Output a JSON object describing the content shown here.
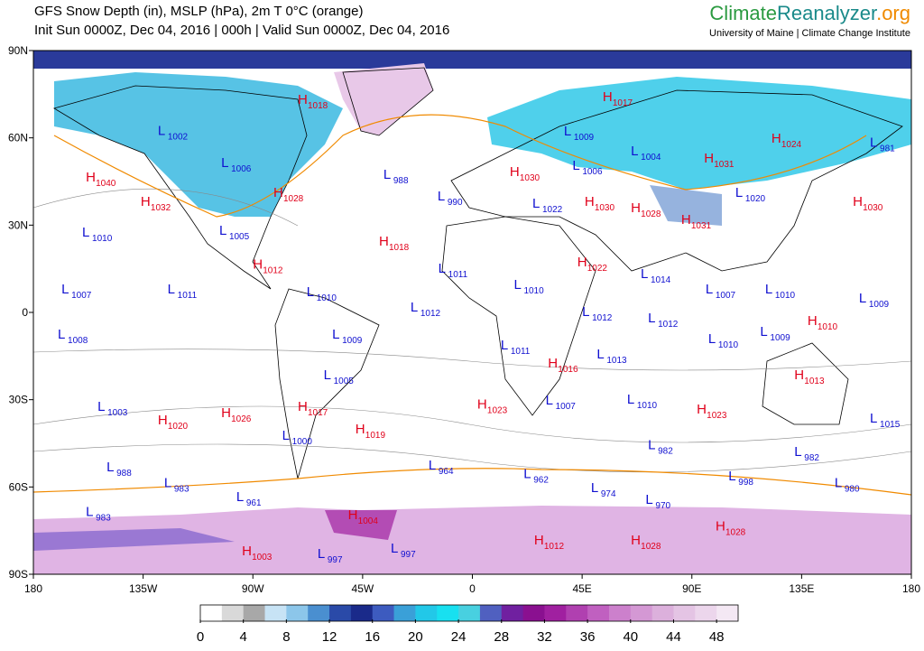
{
  "header": {
    "title": "GFS Snow Depth (in), MSLP (hPa), 2m T 0°C (orange)",
    "subtitle": "Init Sun 0000Z, Dec 04, 2016 | 000h | Valid Sun 0000Z, Dec 04, 2016",
    "logo_climate": "Climate",
    "logo_reanalyzer": "Reanalyzer",
    "logo_org": ".org",
    "logo_sub": "University of Maine | Climate Change Institute"
  },
  "map": {
    "xlim": [
      -180,
      180
    ],
    "ylim": [
      -90,
      90
    ],
    "xticks": [
      {
        "value": -180,
        "label": "180"
      },
      {
        "value": -135,
        "label": "135W"
      },
      {
        "value": -90,
        "label": "90W"
      },
      {
        "value": -45,
        "label": "45W"
      },
      0,
      {
        "value": 45,
        "label": "45E"
      },
      {
        "value": 90,
        "label": "90E"
      },
      {
        "value": 135,
        "label": "135E"
      },
      {
        "value": 180,
        "label": "180"
      }
    ],
    "yticks": [
      {
        "value": 90,
        "label": "90N"
      },
      {
        "value": 60,
        "label": "60N"
      },
      {
        "value": 30,
        "label": "30N"
      },
      0,
      {
        "value": -30,
        "label": "30S"
      },
      {
        "value": -60,
        "label": "60S"
      },
      {
        "value": -90,
        "label": "90S"
      }
    ],
    "center_colors": {
      "H": "#e0001a",
      "L": "#1010d0"
    },
    "pressure_centers": [
      {
        "type": "H",
        "value": 1018,
        "lon": -71.6,
        "lat": 71.7
      },
      {
        "type": "L",
        "value": 1002,
        "lon": -129,
        "lat": 61
      },
      {
        "type": "L",
        "value": 1006,
        "lon": -103,
        "lat": 50
      },
      {
        "type": "H",
        "value": 1040,
        "lon": -158.5,
        "lat": 45
      },
      {
        "type": "H",
        "value": 1032,
        "lon": -136,
        "lat": 36.6
      },
      {
        "type": "H",
        "value": 1028,
        "lon": -81.6,
        "lat": 39.7
      },
      {
        "type": "L",
        "value": 1005,
        "lon": -103.8,
        "lat": 26.7
      },
      {
        "type": "L",
        "value": 1010,
        "lon": -160,
        "lat": 26
      },
      {
        "type": "H",
        "value": 1012,
        "lon": -90,
        "lat": 15
      },
      {
        "type": "L",
        "value": 988,
        "lon": -36.5,
        "lat": 46
      },
      {
        "type": "L",
        "value": 990,
        "lon": -14.3,
        "lat": 38.5
      },
      {
        "type": "H",
        "value": 1018,
        "lon": -38.3,
        "lat": 23
      },
      {
        "type": "L",
        "value": 1011,
        "lon": -14,
        "lat": 13.6
      },
      {
        "type": "L",
        "value": 1007,
        "lon": -168.5,
        "lat": 6.5
      },
      {
        "type": "L",
        "value": 1011,
        "lon": -125,
        "lat": 6.5
      },
      {
        "type": "L",
        "value": 1010,
        "lon": -68,
        "lat": 5.6
      },
      {
        "type": "L",
        "value": 1012,
        "lon": -25.4,
        "lat": 0.3
      },
      {
        "type": "L",
        "value": 1008,
        "lon": -170,
        "lat": -9
      },
      {
        "type": "L",
        "value": 1009,
        "lon": -57.5,
        "lat": -9
      },
      {
        "type": "L",
        "value": 1005,
        "lon": -61,
        "lat": -23
      },
      {
        "type": "L",
        "value": 1003,
        "lon": -153.7,
        "lat": -33.8
      },
      {
        "type": "H",
        "value": 1020,
        "lon": -129,
        "lat": -38.5
      },
      {
        "type": "H",
        "value": 1026,
        "lon": -103,
        "lat": -36
      },
      {
        "type": "H",
        "value": 1017,
        "lon": -71.6,
        "lat": -33.8
      },
      {
        "type": "H",
        "value": 1019,
        "lon": -48,
        "lat": -41.6
      },
      {
        "type": "L",
        "value": 1000,
        "lon": -78,
        "lat": -43.8
      },
      {
        "type": "H",
        "value": 1023,
        "lon": 2,
        "lat": -33
      },
      {
        "type": "L",
        "value": 988,
        "lon": -150,
        "lat": -54.6
      },
      {
        "type": "L",
        "value": 983,
        "lon": -126.4,
        "lat": -60
      },
      {
        "type": "L",
        "value": 961,
        "lon": -96.8,
        "lat": -64.9
      },
      {
        "type": "L",
        "value": 983,
        "lon": -158.5,
        "lat": -70
      },
      {
        "type": "H",
        "value": 1004,
        "lon": -51,
        "lat": -71
      },
      {
        "type": "H",
        "value": 1003,
        "lon": -94.5,
        "lat": -83.5
      },
      {
        "type": "L",
        "value": 997,
        "lon": -63.5,
        "lat": -84.4
      },
      {
        "type": "L",
        "value": 997,
        "lon": -33.5,
        "lat": -82.6
      },
      {
        "type": "L",
        "value": 964,
        "lon": -18,
        "lat": -54
      },
      {
        "type": "L",
        "value": 962,
        "lon": 21,
        "lat": -57
      },
      {
        "type": "L",
        "value": 974,
        "lon": 48.6,
        "lat": -61.8
      },
      {
        "type": "L",
        "value": 970,
        "lon": 71,
        "lat": -65.8
      },
      {
        "type": "H",
        "value": 1012,
        "lon": 25.3,
        "lat": -79.8
      },
      {
        "type": "H",
        "value": 1028,
        "lon": 65,
        "lat": -79.8
      },
      {
        "type": "H",
        "value": 1028,
        "lon": 99.7,
        "lat": -75
      },
      {
        "type": "L",
        "value": 998,
        "lon": 105,
        "lat": -57.7
      },
      {
        "type": "L",
        "value": 980,
        "lon": 148.5,
        "lat": -60
      },
      {
        "type": "L",
        "value": 982,
        "lon": 132,
        "lat": -49.4
      },
      {
        "type": "L",
        "value": 982,
        "lon": 72,
        "lat": -47
      },
      {
        "type": "H",
        "value": 1023,
        "lon": 92,
        "lat": -34.8
      },
      {
        "type": "L",
        "value": 1010,
        "lon": 63.4,
        "lat": -31.4
      },
      {
        "type": "L",
        "value": 1007,
        "lon": 30,
        "lat": -31.7
      },
      {
        "type": "H",
        "value": 1016,
        "lon": 31,
        "lat": -19
      },
      {
        "type": "L",
        "value": 1013,
        "lon": 51,
        "lat": -15.8
      },
      {
        "type": "L",
        "value": 1011,
        "lon": 11.6,
        "lat": -12.7
      },
      {
        "type": "L",
        "value": 1012,
        "lon": 45,
        "lat": -1.3
      },
      {
        "type": "L",
        "value": 1010,
        "lon": 17,
        "lat": 8
      },
      {
        "type": "H",
        "value": 1022,
        "lon": 43,
        "lat": 15.8
      },
      {
        "type": "L",
        "value": 1014,
        "lon": 69,
        "lat": 11.8
      },
      {
        "type": "L",
        "value": 1012,
        "lon": 72,
        "lat": -3.4
      },
      {
        "type": "L",
        "value": 1007,
        "lon": 95.6,
        "lat": 6.5
      },
      {
        "type": "L",
        "value": 1010,
        "lon": 120,
        "lat": 6.5
      },
      {
        "type": "L",
        "value": 1009,
        "lon": 158.5,
        "lat": 3.4
      },
      {
        "type": "L",
        "value": 1010,
        "lon": 96.7,
        "lat": -10.6
      },
      {
        "type": "L",
        "value": 1009,
        "lon": 118,
        "lat": -8
      },
      {
        "type": "H",
        "value": 1010,
        "lon": 137.4,
        "lat": -4.4
      },
      {
        "type": "H",
        "value": 1013,
        "lon": 132,
        "lat": -23
      },
      {
        "type": "L",
        "value": 1015,
        "lon": 163,
        "lat": -37.9
      },
      {
        "type": "H",
        "value": 1030,
        "lon": 156,
        "lat": 36.6
      },
      {
        "type": "L",
        "value": 981,
        "lon": 163,
        "lat": 57
      },
      {
        "type": "H",
        "value": 1024,
        "lon": 122.6,
        "lat": 58.3
      },
      {
        "type": "H",
        "value": 1031,
        "lon": 95,
        "lat": 51.5
      },
      {
        "type": "L",
        "value": 1020,
        "lon": 107.8,
        "lat": 39.7
      },
      {
        "type": "H",
        "value": 1031,
        "lon": 85.6,
        "lat": 30.4
      },
      {
        "type": "H",
        "value": 1028,
        "lon": 65,
        "lat": 34.4
      },
      {
        "type": "H",
        "value": 1030,
        "lon": 46,
        "lat": 36.6
      },
      {
        "type": "L",
        "value": 1022,
        "lon": 24.6,
        "lat": 36
      },
      {
        "type": "L",
        "value": 1006,
        "lon": 41,
        "lat": 49
      },
      {
        "type": "H",
        "value": 1030,
        "lon": 15.3,
        "lat": 46.9
      },
      {
        "type": "L",
        "value": 1009,
        "lon": 37.5,
        "lat": 60.8
      },
      {
        "type": "L",
        "value": 1004,
        "lon": 65,
        "lat": 54
      },
      {
        "type": "H",
        "value": 1017,
        "lon": 53.4,
        "lat": 72.6
      }
    ]
  },
  "colorbar": {
    "lim": [
      0,
      50
    ],
    "ticks": [
      0,
      4,
      8,
      12,
      16,
      20,
      24,
      28,
      32,
      36,
      40,
      44,
      48
    ],
    "colors": [
      "#ffffff",
      "#d9d9d9",
      "#a8a8a8",
      "#c7e3f5",
      "#8cc6ea",
      "#4a8fd0",
      "#2a4aa8",
      "#1a2a8a",
      "#3d5bbf",
      "#3aa0d8",
      "#22c8e8",
      "#18e0f0",
      "#48d0e0",
      "#5060c0",
      "#7020a0",
      "#8a1090",
      "#a020a0",
      "#b040b0",
      "#c060c0",
      "#cc80cc",
      "#d498d4",
      "#dcb0dc",
      "#e4c4e4",
      "#ecd6ec",
      "#f4e8f4"
    ]
  }
}
